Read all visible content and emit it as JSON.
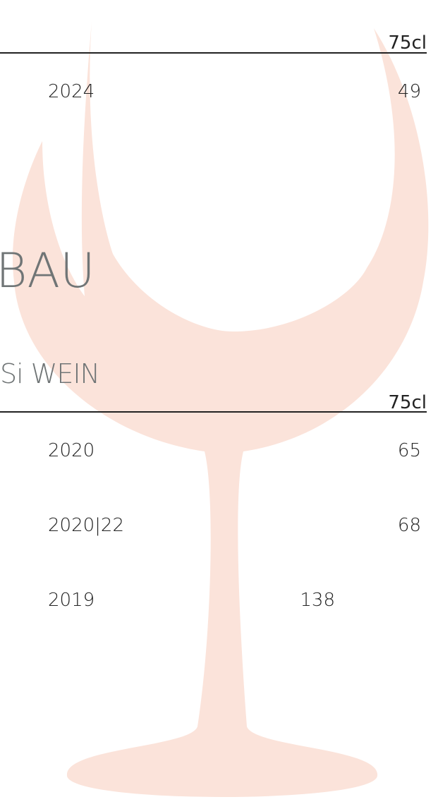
{
  "sections": [
    {
      "unit": "75cl",
      "rows": [
        {
          "year": "2024",
          "price": "49"
        }
      ]
    },
    {
      "heading": "BAU",
      "subheading": "Si WEIN",
      "unit": "75cl",
      "rows": [
        {
          "year": "2020",
          "price": "65"
        },
        {
          "year": "2020|22",
          "price": "68"
        },
        {
          "year": "2019",
          "price": "138"
        }
      ]
    }
  ]
}
